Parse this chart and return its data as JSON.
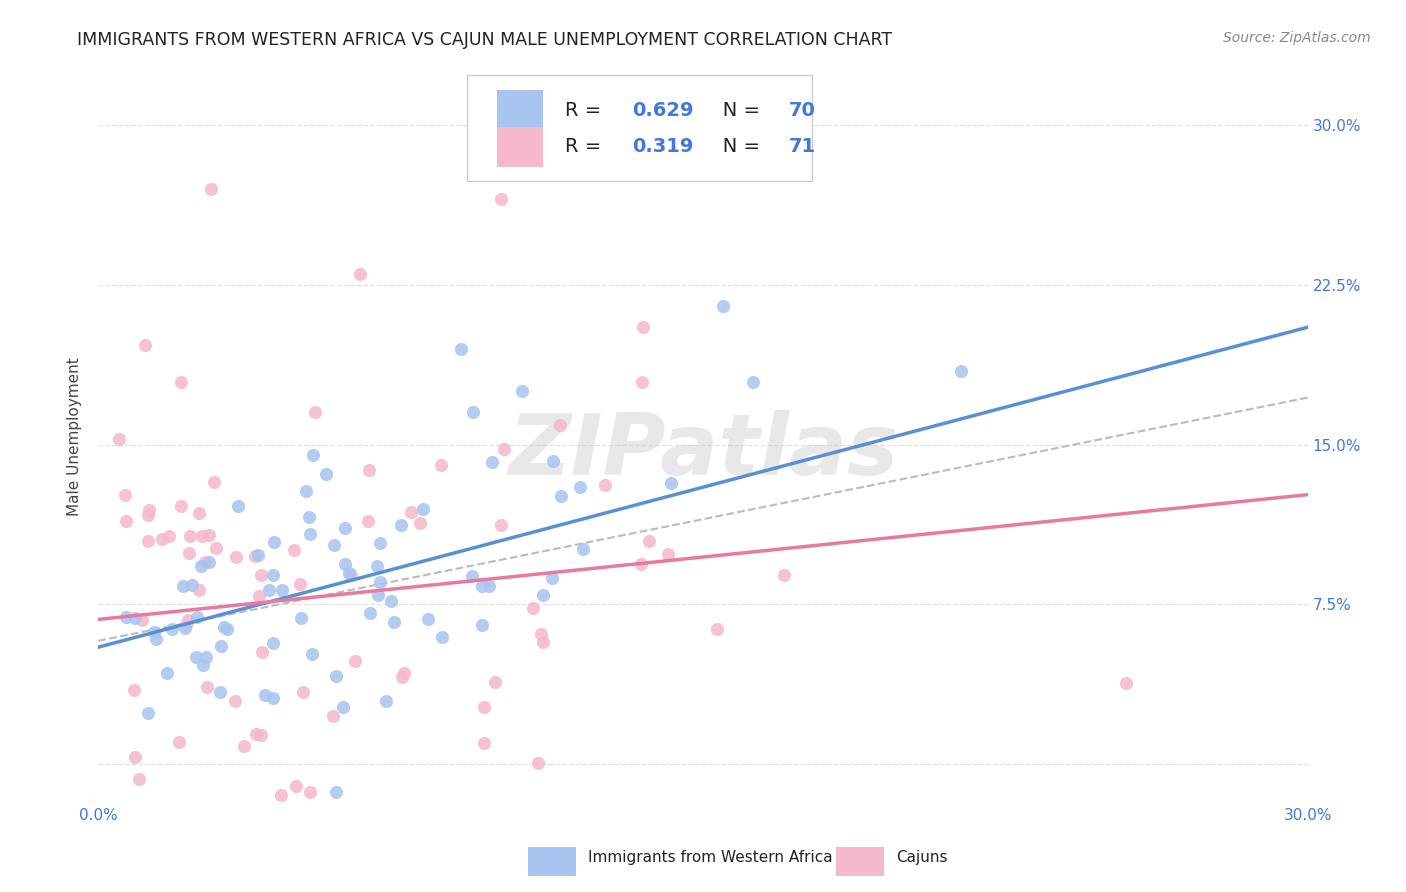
{
  "title": "IMMIGRANTS FROM WESTERN AFRICA VS CAJUN MALE UNEMPLOYMENT CORRELATION CHART",
  "source": "Source: ZipAtlas.com",
  "ylabel": "Male Unemployment",
  "ytick_labels": [
    "",
    "7.5%",
    "15.0%",
    "22.5%",
    "30.0%"
  ],
  "ytick_values": [
    0,
    0.075,
    0.15,
    0.225,
    0.3
  ],
  "xlim": [
    0,
    0.3
  ],
  "ylim": [
    -0.018,
    0.325
  ],
  "legend_r1": "0.629",
  "legend_n1": "70",
  "legend_r2": "0.319",
  "legend_n2": "71",
  "color_blue": "#a8c4f0",
  "color_pink": "#f5b8cc",
  "color_blue_line": "#5b8fd4",
  "color_pink_line": "#e87aa0",
  "color_blue_text": "#4477dd",
  "color_pink_text": "#4477dd",
  "color_gray_dash": "#bbbbbb",
  "background_color": "#ffffff",
  "grid_color": "#e0e0e0",
  "title_fontsize": 12.5,
  "source_fontsize": 10,
  "label_fontsize": 11,
  "legend_fontsize": 14,
  "watermark_text": "ZIPatlas",
  "seed_blue": 42,
  "seed_pink": 99,
  "blue_n": 70,
  "pink_n": 71,
  "blue_slope": 0.5,
  "blue_intercept": 0.055,
  "pink_slope": 0.195,
  "pink_intercept": 0.068,
  "blue_noise": 0.03,
  "pink_noise": 0.048
}
